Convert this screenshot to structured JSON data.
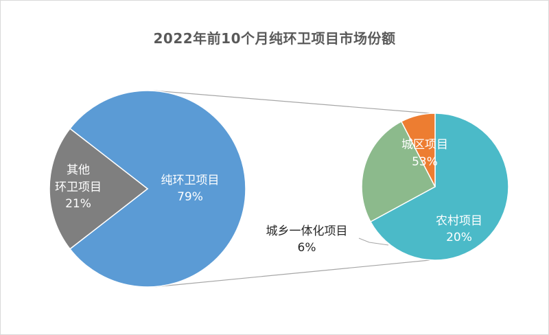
{
  "chart_data": {
    "type": "pie",
    "title": "2022年前10个月纯环卫项目市场份额",
    "main_pie": {
      "slices": [
        {
          "label": "纯环卫项目",
          "value": 79,
          "value_label": "79%",
          "color": "#5b9bd5"
        },
        {
          "label_lines": [
            "其他",
            "环卫项目"
          ],
          "value": 21,
          "value_label": "21%",
          "color": "#7f7f7f"
        }
      ]
    },
    "sub_pie": {
      "slices": [
        {
          "label": "城区项目",
          "value": 53,
          "value_label": "53%",
          "color": "#4bbac8"
        },
        {
          "label": "农村项目",
          "value": 20,
          "value_label": "20%",
          "color": "#8cba8c"
        },
        {
          "label": "城乡一体化项目",
          "value": 6,
          "value_label": "6%",
          "color": "#ed7d31"
        }
      ]
    },
    "colors": {
      "connector": "#a6a6a6",
      "label_dark": "#262626",
      "label_light": "#ffffff"
    }
  }
}
